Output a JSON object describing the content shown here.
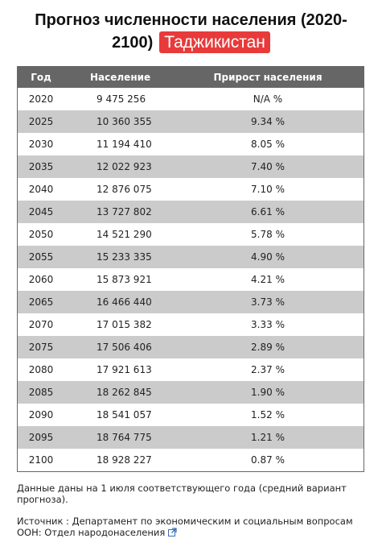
{
  "header": {
    "title": "Прогноз численности населения (2020-2100)",
    "badge": "Таджикистан"
  },
  "table": {
    "columns": [
      "Год",
      "Население",
      "Прирост населения"
    ],
    "rows": [
      [
        "2020",
        "9 475 256",
        "N/A %"
      ],
      [
        "2025",
        "10 360 355",
        "9.34 %"
      ],
      [
        "2030",
        "11 194 410",
        "8.05 %"
      ],
      [
        "2035",
        "12 022 923",
        "7.40 %"
      ],
      [
        "2040",
        "12 876 075",
        "7.10 %"
      ],
      [
        "2045",
        "13 727 802",
        "6.61 %"
      ],
      [
        "2050",
        "14 521 290",
        "5.78 %"
      ],
      [
        "2055",
        "15 233 335",
        "4.90 %"
      ],
      [
        "2060",
        "15 873 921",
        "4.21 %"
      ],
      [
        "2065",
        "16 466 440",
        "3.73 %"
      ],
      [
        "2070",
        "17 015 382",
        "3.33 %"
      ],
      [
        "2075",
        "17 506 406",
        "2.89 %"
      ],
      [
        "2080",
        "17 921 613",
        "2.37 %"
      ],
      [
        "2085",
        "18 262 845",
        "1.90 %"
      ],
      [
        "2090",
        "18 541 057",
        "1.52 %"
      ],
      [
        "2095",
        "18 764 775",
        "1.21 %"
      ],
      [
        "2100",
        "18 928 227",
        "0.87 %"
      ]
    ]
  },
  "notes": {
    "date_note": "Данные даны на 1 июля соответствующего года (средний вариант прогноза).",
    "source_label": "Источник : Департамент по экономическим и социальным вопросам ООН:",
    "source_link": "Отдел народонаселения"
  }
}
